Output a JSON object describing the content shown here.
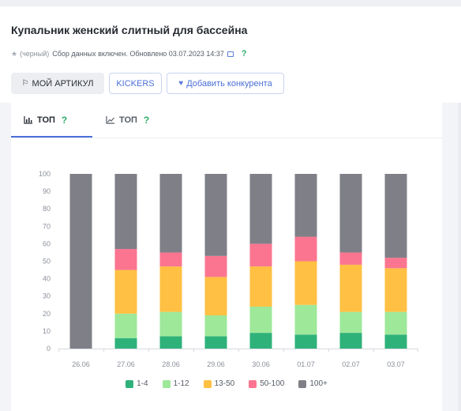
{
  "header": {
    "title": "Купальник женский слитный для бассейна",
    "color_note": "(черный)",
    "status": "Сбор данных включен. Обновлено 03.07.2023 14:37",
    "help": "?"
  },
  "buttons": {
    "own": "МОЙ АРТИКУЛ",
    "brand": "KICKERS",
    "add_competitor": "Добавить конкурента"
  },
  "tabs": [
    {
      "label": "ТОП",
      "icon": "bar-chart-icon",
      "help": "?"
    },
    {
      "label": "ТОП",
      "icon": "line-chart-icon",
      "help": "?"
    }
  ],
  "chart_data": {
    "type": "bar",
    "stacked": true,
    "categories": [
      "26.06",
      "27.06",
      "28.06",
      "29.06",
      "30.06",
      "01.07",
      "02.07",
      "03.07"
    ],
    "ylim": [
      0,
      100
    ],
    "yticks": [
      0,
      10,
      20,
      30,
      40,
      50,
      60,
      70,
      80,
      90,
      100
    ],
    "grid": false,
    "legend_position": "bottom",
    "series": [
      {
        "name": "1-4",
        "color": "#2fb27a",
        "values": [
          0,
          6,
          7,
          7,
          9,
          8,
          9,
          8
        ]
      },
      {
        "name": "1-12",
        "color": "#9ee89a",
        "values": [
          0,
          14,
          14,
          12,
          15,
          17,
          12,
          13
        ]
      },
      {
        "name": "13-50",
        "color": "#ffc043",
        "values": [
          0,
          25,
          26,
          22,
          23,
          25,
          27,
          25
        ]
      },
      {
        "name": "50-100",
        "color": "#fb7590",
        "values": [
          0,
          12,
          8,
          12,
          13,
          14,
          7,
          6
        ]
      },
      {
        "name": "100+",
        "color": "#7f8087",
        "values": [
          100,
          43,
          45,
          47,
          40,
          36,
          45,
          48
        ]
      }
    ]
  }
}
